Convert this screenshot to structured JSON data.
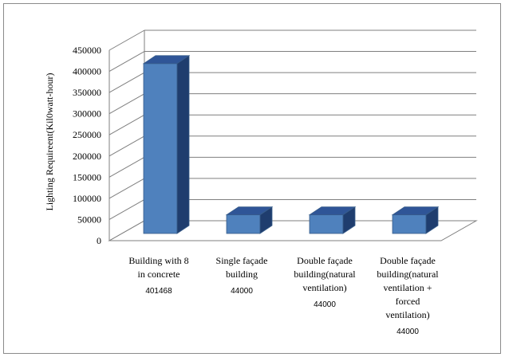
{
  "chart_data": {
    "type": "bar",
    "title": "",
    "xlabel": "",
    "ylabel": "Lighting Requireent(Kil0watt-hour)",
    "ylim": [
      0,
      450000
    ],
    "yticks": [
      0,
      50000,
      100000,
      150000,
      200000,
      250000,
      300000,
      350000,
      400000,
      450000
    ],
    "grid": true,
    "legend": "none",
    "categories": [
      [
        "Building with 8",
        "in concrete"
      ],
      [
        "Single façade",
        "building"
      ],
      [
        "Double façade",
        "building(natural",
        "ventilation)"
      ],
      [
        "Double façade",
        "building(natural",
        "ventilation +",
        "forced",
        "ventilation)"
      ]
    ],
    "values": [
      401468,
      44000,
      44000,
      44000
    ],
    "data_labels": [
      "401468",
      "44000",
      "44000",
      "44000"
    ],
    "colors": {
      "front": "#4f81bd",
      "top": "#2f5597",
      "side": "#1f3d6e",
      "grid": "#7f7f7f",
      "text": "#000000"
    }
  }
}
